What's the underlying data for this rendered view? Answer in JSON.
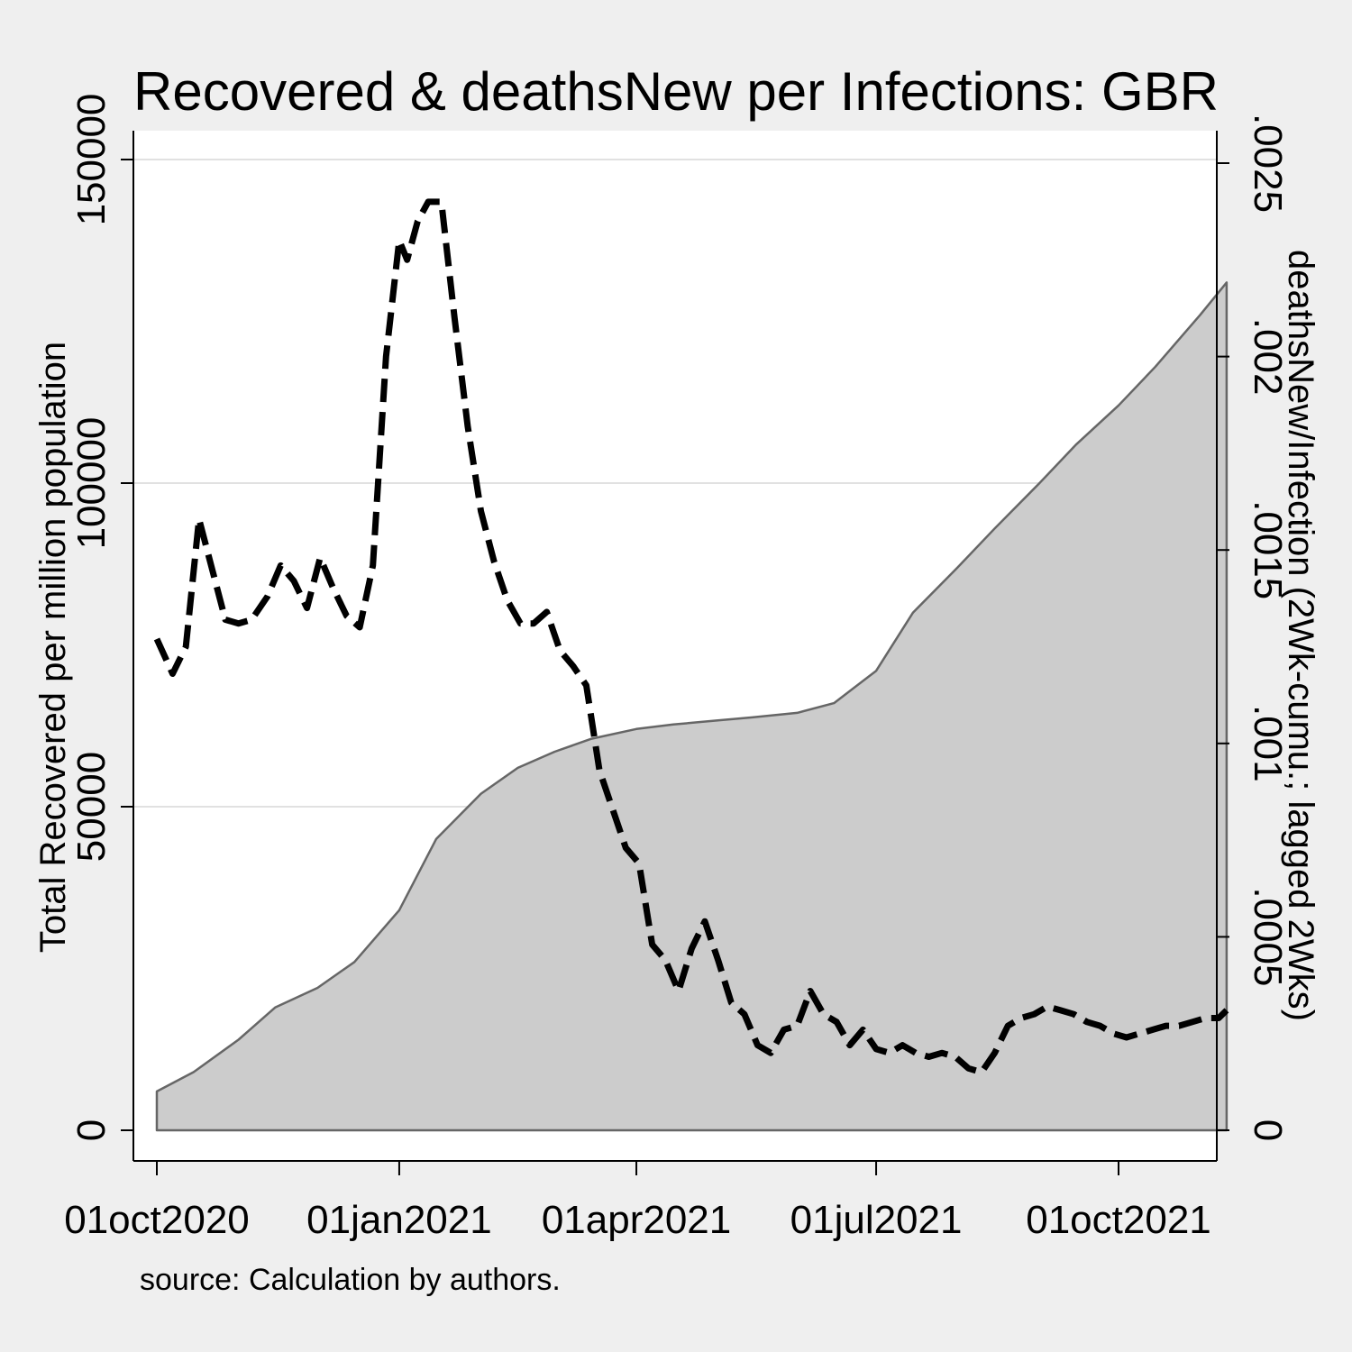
{
  "chart_data": {
    "type": "area",
    "title": "Recovered & deathsNew per Infections: GBR",
    "source_note": "source: Calculation by authors.",
    "colors": {
      "background": "#efefef",
      "plot_background": "#ffffff",
      "area_fill": "#cccccc",
      "area_stroke": "#666666",
      "line": "#000000",
      "grid": "#e1e1e1"
    },
    "grid": true,
    "x_axis": {
      "type": "date",
      "range": [
        "2020-09-28",
        "2021-11-15"
      ],
      "ticks": [
        "2020-10-01",
        "2021-01-01",
        "2021-04-01",
        "2021-07-01",
        "2021-10-01"
      ],
      "tick_labels": [
        "01oct2020",
        "01jan2021",
        "01apr2021",
        "01jul2021",
        "01oct2021"
      ]
    },
    "y_left": {
      "label": "Total Recovered per million population",
      "range": [
        0,
        150000
      ],
      "ticks": [
        0,
        50000,
        100000,
        150000
      ],
      "tick_labels": [
        "0",
        "50000",
        "100000",
        "150000"
      ]
    },
    "y_right": {
      "label": "deathsNew/Infection (2Wk-cumu.; lagged 2Wks)",
      "range": [
        0,
        0.0025
      ],
      "ticks": [
        0,
        0.0005,
        0.001,
        0.0015,
        0.002,
        0.0025
      ],
      "tick_labels": [
        "0",
        ".0005",
        ".001",
        ".0015",
        ".002",
        ".0025"
      ]
    },
    "series": [
      {
        "axis": "left",
        "style": "area",
        "points": [
          [
            "2020-10-01",
            6000
          ],
          [
            "2020-10-15",
            9000
          ],
          [
            "2020-11-01",
            14000
          ],
          [
            "2020-11-15",
            19000
          ],
          [
            "2020-12-01",
            22000
          ],
          [
            "2020-12-15",
            26000
          ],
          [
            "2021-01-01",
            34000
          ],
          [
            "2021-01-15",
            45000
          ],
          [
            "2021-02-01",
            52000
          ],
          [
            "2021-02-15",
            56000
          ],
          [
            "2021-03-01",
            58500
          ],
          [
            "2021-03-15",
            60500
          ],
          [
            "2021-04-01",
            62000
          ],
          [
            "2021-04-15",
            62700
          ],
          [
            "2021-05-01",
            63300
          ],
          [
            "2021-05-15",
            63800
          ],
          [
            "2021-06-01",
            64500
          ],
          [
            "2021-06-15",
            66000
          ],
          [
            "2021-07-01",
            71000
          ],
          [
            "2021-07-15",
            80000
          ],
          [
            "2021-08-01",
            87000
          ],
          [
            "2021-08-15",
            93000
          ],
          [
            "2021-09-01",
            100000
          ],
          [
            "2021-09-15",
            106000
          ],
          [
            "2021-10-01",
            112000
          ],
          [
            "2021-10-15",
            118000
          ],
          [
            "2021-11-01",
            126000
          ],
          [
            "2021-11-11",
            131000
          ]
        ]
      },
      {
        "axis": "right",
        "style": "dashed-line",
        "points": [
          [
            "2020-10-01",
            0.00127
          ],
          [
            "2020-10-07",
            0.00118
          ],
          [
            "2020-10-12",
            0.00125
          ],
          [
            "2020-10-17",
            0.00158
          ],
          [
            "2020-10-22",
            0.00145
          ],
          [
            "2020-10-27",
            0.00132
          ],
          [
            "2020-11-01",
            0.00131
          ],
          [
            "2020-11-06",
            0.00132
          ],
          [
            "2020-11-12",
            0.00138
          ],
          [
            "2020-11-17",
            0.00146
          ],
          [
            "2020-11-22",
            0.00142
          ],
          [
            "2020-11-27",
            0.00135
          ],
          [
            "2020-12-02",
            0.00148
          ],
          [
            "2020-12-07",
            0.0014
          ],
          [
            "2020-12-12",
            0.00133
          ],
          [
            "2020-12-17",
            0.0013
          ],
          [
            "2020-12-22",
            0.00146
          ],
          [
            "2020-12-27",
            0.002
          ],
          [
            "2021-01-01",
            0.0023
          ],
          [
            "2021-01-04",
            0.00225
          ],
          [
            "2021-01-08",
            0.00235
          ],
          [
            "2021-01-12",
            0.0024
          ],
          [
            "2021-01-17",
            0.0024
          ],
          [
            "2021-01-22",
            0.0021
          ],
          [
            "2021-01-27",
            0.00182
          ],
          [
            "2021-02-01",
            0.0016
          ],
          [
            "2021-02-06",
            0.00147
          ],
          [
            "2021-02-11",
            0.00137
          ],
          [
            "2021-02-16",
            0.00131
          ],
          [
            "2021-02-21",
            0.00131
          ],
          [
            "2021-02-26",
            0.00134
          ],
          [
            "2021-03-03",
            0.00124
          ],
          [
            "2021-03-08",
            0.0012
          ],
          [
            "2021-03-13",
            0.00115
          ],
          [
            "2021-03-18",
            0.00093
          ],
          [
            "2021-03-23",
            0.00083
          ],
          [
            "2021-03-28",
            0.00073
          ],
          [
            "2021-04-02",
            0.00069
          ],
          [
            "2021-04-07",
            0.00048
          ],
          [
            "2021-04-12",
            0.00044
          ],
          [
            "2021-04-17",
            0.00036
          ],
          [
            "2021-04-22",
            0.00047
          ],
          [
            "2021-04-27",
            0.00054
          ],
          [
            "2021-05-02",
            0.00044
          ],
          [
            "2021-05-07",
            0.00033
          ],
          [
            "2021-05-12",
            0.0003
          ],
          [
            "2021-05-17",
            0.00022
          ],
          [
            "2021-05-22",
            0.0002
          ],
          [
            "2021-05-27",
            0.00026
          ],
          [
            "2021-06-01",
            0.00027
          ],
          [
            "2021-06-06",
            0.00036
          ],
          [
            "2021-06-11",
            0.0003
          ],
          [
            "2021-06-16",
            0.00028
          ],
          [
            "2021-06-21",
            0.00022
          ],
          [
            "2021-06-26",
            0.00026
          ],
          [
            "2021-07-01",
            0.00021
          ],
          [
            "2021-07-06",
            0.0002
          ],
          [
            "2021-07-11",
            0.00022
          ],
          [
            "2021-07-16",
            0.0002
          ],
          [
            "2021-07-21",
            0.00019
          ],
          [
            "2021-07-26",
            0.0002
          ],
          [
            "2021-07-31",
            0.00019
          ],
          [
            "2021-08-05",
            0.00016
          ],
          [
            "2021-08-10",
            0.00015
          ],
          [
            "2021-08-15",
            0.0002
          ],
          [
            "2021-08-20",
            0.00027
          ],
          [
            "2021-08-25",
            0.00029
          ],
          [
            "2021-08-30",
            0.0003
          ],
          [
            "2021-09-04",
            0.00032
          ],
          [
            "2021-09-09",
            0.00031
          ],
          [
            "2021-09-14",
            0.0003
          ],
          [
            "2021-09-19",
            0.00028
          ],
          [
            "2021-09-24",
            0.00027
          ],
          [
            "2021-09-29",
            0.00025
          ],
          [
            "2021-10-04",
            0.00024
          ],
          [
            "2021-10-09",
            0.00025
          ],
          [
            "2021-10-14",
            0.00026
          ],
          [
            "2021-10-19",
            0.00027
          ],
          [
            "2021-10-24",
            0.00027
          ],
          [
            "2021-10-29",
            0.00028
          ],
          [
            "2021-11-03",
            0.00029
          ],
          [
            "2021-11-08",
            0.00029
          ],
          [
            "2021-11-11",
            0.00031
          ]
        ]
      }
    ]
  }
}
